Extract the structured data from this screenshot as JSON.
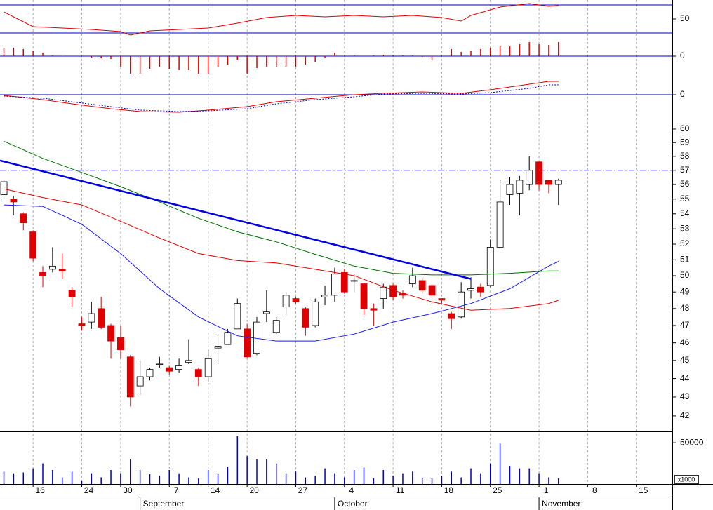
{
  "chart_data": [
    {
      "type": "line",
      "ylim": [
        25,
        77
      ],
      "yticks": [
        50
      ],
      "hlines": [
        70,
        30
      ],
      "hline_color": "#0000c8",
      "series": [
        {
          "color": "#e00000",
          "x": [
            0,
            3,
            6,
            9,
            12,
            13,
            15,
            18,
            21,
            24,
            27,
            30,
            33,
            36,
            39,
            42,
            45,
            47,
            48,
            51,
            54,
            56,
            57
          ],
          "values": [
            60,
            39,
            37,
            35,
            32,
            27,
            33,
            35,
            37,
            44,
            52,
            55,
            53,
            55,
            53,
            55,
            52,
            47,
            55,
            67,
            72,
            68,
            69
          ]
        }
      ]
    },
    {
      "type": "bar",
      "ylim": [
        -1,
        1
      ],
      "yticks": [
        0
      ],
      "hlines": [
        0
      ],
      "hline_color": "#0000c8",
      "color": "#e00000",
      "values": [
        0.48,
        0.48,
        0.4,
        0.32,
        0.2,
        0.04,
        0.02,
        0,
        0,
        -0.08,
        -0.12,
        -0.16,
        -0.6,
        -1.0,
        -1.0,
        -0.72,
        -0.6,
        -0.72,
        -0.8,
        -0.8,
        -1.0,
        -1.0,
        -0.6,
        -0.48,
        -0.2,
        -1.0,
        -0.68,
        -0.6,
        -0.6,
        -0.6,
        -0.6,
        -0.48,
        -0.32,
        -0.08,
        0.2,
        0,
        0.04,
        0,
        0.04,
        0.08,
        0.04,
        0.04,
        0.04,
        -0.04,
        -0.24,
        0,
        0.4,
        0.24,
        0.32,
        0.4,
        0.48,
        0.56,
        0.56,
        0.68,
        0.8,
        0.68,
        0.64,
        0.8
      ]
    },
    {
      "type": "line",
      "ylim": [
        -1.12,
        1.12
      ],
      "yticks": [
        0
      ],
      "hlines": [
        0
      ],
      "hline_color": "#0000c8",
      "series": [
        {
          "color": "#e00000",
          "x": [
            0,
            4,
            7,
            11,
            14,
            18,
            21,
            25,
            28,
            32,
            36,
            39,
            43,
            47,
            50,
            54,
            56,
            57
          ],
          "values": [
            -0.04,
            -0.28,
            -0.52,
            -0.8,
            -0.96,
            -1.0,
            -0.88,
            -0.68,
            -0.4,
            -0.2,
            0,
            0.08,
            0.16,
            0.08,
            0.28,
            0.6,
            0.76,
            0.76
          ]
        },
        {
          "color": "#0000c8",
          "style": "dotted",
          "x": [
            0,
            4,
            7,
            11,
            14,
            18,
            21,
            25,
            28,
            32,
            36,
            39,
            43,
            47,
            50,
            54,
            56,
            57
          ],
          "values": [
            -0.08,
            -0.2,
            -0.4,
            -0.68,
            -0.88,
            -0.96,
            -0.92,
            -0.8,
            -0.52,
            -0.28,
            -0.12,
            0.04,
            0.08,
            0.04,
            0.12,
            0.36,
            0.56,
            0.56
          ]
        }
      ]
    },
    {
      "type": "candlestick",
      "log_scale": true,
      "ylim": [
        41.2,
        61
      ],
      "yticks": [
        42,
        43,
        44,
        45,
        46,
        47,
        48,
        49,
        50,
        51,
        52,
        53,
        54,
        55,
        56,
        57,
        58,
        59,
        60
      ],
      "hlines": [
        57
      ],
      "hline_color": "#0000c8",
      "hline_style": "dashdot",
      "up_color": "#ffffff",
      "down_color": "#e00000",
      "open": [
        55.3,
        55.0,
        54.0,
        52.8,
        50.2,
        50.4,
        50.4,
        49.1,
        47.1,
        47.2,
        48.0,
        47.0,
        46.3,
        45.2,
        43.6,
        44.1,
        44.8,
        44.6,
        44.5,
        44.9,
        44.5,
        44.1,
        45.7,
        45.9,
        46.8,
        46.8,
        45.4,
        47.7,
        46.6,
        48.1,
        48.6,
        48.0,
        47.0,
        48.7,
        48.8,
        50.2,
        49.7,
        49.5,
        48.0,
        48.6,
        49.4,
        48.9,
        49.5,
        49.7,
        49.4,
        48.6,
        47.7,
        47.5,
        49.1,
        49.3,
        49.4,
        51.8,
        55.3,
        55.4,
        56.0,
        57.6,
        56.3,
        56.0
      ],
      "high": [
        56.3,
        55.2,
        54.1,
        52.9,
        50.6,
        51.8,
        51.4,
        49.3,
        47.5,
        48.4,
        48.7,
        47.1,
        47.0,
        45.3,
        45.0,
        44.6,
        45.2,
        44.7,
        45.1,
        46.2,
        44.6,
        45.6,
        46.5,
        46.8,
        48.6,
        47.1,
        47.5,
        49.1,
        47.5,
        49.0,
        48.7,
        48.1,
        48.6,
        49.4,
        50.5,
        50.4,
        50.1,
        49.5,
        48.3,
        49.5,
        49.5,
        49.1,
        50.5,
        49.9,
        49.5,
        48.6,
        47.8,
        49.6,
        49.9,
        49.5,
        52.3,
        56.3,
        56.5,
        56.6,
        58.0,
        57.6,
        56.3,
        56.4
      ],
      "low": [
        55.0,
        53.9,
        52.9,
        50.9,
        49.3,
        50.2,
        49.8,
        48.1,
        46.7,
        46.8,
        46.8,
        45.1,
        45.1,
        42.5,
        43.1,
        43.9,
        44.6,
        44.2,
        44.3,
        44.8,
        43.6,
        43.8,
        44.8,
        46.0,
        46.8,
        45.1,
        45.3,
        47.2,
        46.5,
        47.6,
        48.3,
        46.4,
        46.9,
        48.2,
        48.4,
        48.9,
        49.0,
        47.6,
        47.0,
        48.0,
        48.5,
        48.6,
        49.3,
        48.9,
        48.3,
        48.3,
        46.8,
        47.4,
        48.6,
        48.7,
        49.3,
        51.8,
        54.6,
        53.9,
        55.6,
        55.6,
        55.4,
        54.6
      ],
      "close": [
        56.2,
        54.8,
        53.4,
        51.1,
        50.0,
        50.6,
        50.3,
        48.7,
        47.0,
        47.7,
        46.9,
        46.1,
        45.6,
        43.0,
        44.1,
        44.5,
        44.8,
        44.4,
        44.7,
        45.0,
        44.1,
        45.1,
        45.8,
        46.6,
        48.3,
        45.2,
        47.2,
        47.8,
        47.3,
        48.8,
        48.4,
        46.9,
        48.4,
        48.8,
        50.1,
        49.0,
        49.7,
        48.0,
        47.9,
        49.3,
        48.7,
        48.8,
        50.0,
        49.1,
        48.8,
        48.5,
        47.4,
        49.0,
        49.2,
        49.0,
        51.8,
        54.8,
        56.0,
        56.3,
        57.0,
        56.0,
        56.0,
        56.3
      ],
      "series": [
        {
          "color": "#1a1aff",
          "x": [
            0,
            4,
            8,
            12,
            16,
            20,
            24,
            28,
            32,
            36,
            40,
            44,
            48,
            52,
            56,
            57
          ],
          "values": [
            54.6,
            54.5,
            53.3,
            51.4,
            49.2,
            47.5,
            46.4,
            46.1,
            46.1,
            46.5,
            47.2,
            47.7,
            48.3,
            49.2,
            50.6,
            50.9
          ]
        },
        {
          "color": "#e00000",
          "x": [
            0,
            4,
            8,
            12,
            16,
            20,
            24,
            28,
            32,
            36,
            40,
            44,
            48,
            52,
            56,
            57
          ],
          "values": [
            55.7,
            55.1,
            54.6,
            53.5,
            52.4,
            51.4,
            50.95,
            50.8,
            50.4,
            50.0,
            49.1,
            48.4,
            47.9,
            48.0,
            48.3,
            48.5
          ]
        },
        {
          "color": "#007000",
          "x": [
            0,
            4,
            8,
            12,
            16,
            20,
            24,
            28,
            32,
            36,
            40,
            44,
            48,
            52,
            56,
            57
          ],
          "values": [
            59.1,
            57.85,
            56.85,
            55.85,
            54.8,
            53.7,
            52.8,
            52.15,
            51.35,
            50.6,
            50.15,
            50.05,
            50.05,
            50.15,
            50.3,
            50.3
          ]
        },
        {
          "color": "#0000e0",
          "width": 2.5,
          "x": [
            -0.4,
            48
          ],
          "values": [
            57.7,
            49.8
          ]
        }
      ]
    },
    {
      "type": "bar",
      "ylim": [
        0,
        62000
      ],
      "yticks": [
        50000
      ],
      "color": "#0000c8",
      "unit_label": "x1000",
      "values": [
        15000,
        13000,
        14000,
        19000,
        25000,
        17000,
        8000,
        15000,
        4000,
        13000,
        8000,
        17000,
        13000,
        30000,
        17000,
        12000,
        10000,
        17000,
        13000,
        8000,
        7000,
        17000,
        12000,
        21000,
        58000,
        34000,
        30000,
        30000,
        25000,
        13000,
        15000,
        8000,
        10000,
        19000,
        13000,
        8000,
        17000,
        20000,
        7000,
        17000,
        10000,
        13000,
        15000,
        8000,
        7000,
        10000,
        15000,
        8000,
        19000,
        13000,
        25000,
        49000,
        22000,
        19000,
        19000,
        13000,
        8000,
        7000
      ],
      "xlim": [
        -0.4,
        68.7
      ],
      "grid": true,
      "xticks": [
        {
          "value": 3,
          "label": "16"
        },
        {
          "value": 8,
          "label": "24"
        },
        {
          "value": 12,
          "label": "30"
        },
        {
          "value": 17,
          "label": "7"
        },
        {
          "value": 21,
          "label": "14"
        },
        {
          "value": 25,
          "label": "20"
        },
        {
          "value": 30,
          "label": "27"
        },
        {
          "value": 35,
          "label": "4"
        },
        {
          "value": 40,
          "label": "11"
        },
        {
          "value": 45,
          "label": "18"
        },
        {
          "value": 50,
          "label": "25"
        },
        {
          "value": 55,
          "label": "1"
        },
        {
          "value": 60,
          "label": "8"
        },
        {
          "value": 65,
          "label": "15"
        }
      ],
      "month_ticks": [
        {
          "value": 14,
          "label": "September"
        },
        {
          "value": 34,
          "label": "October"
        },
        {
          "value": 55,
          "label": "November"
        }
      ]
    }
  ]
}
